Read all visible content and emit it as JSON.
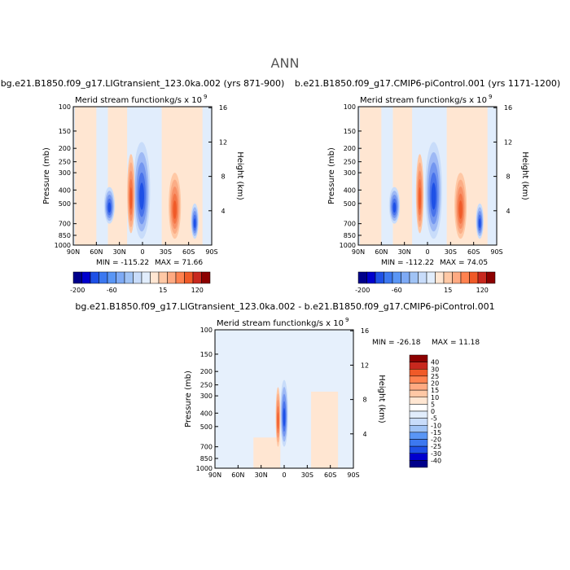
{
  "title": "ANN",
  "colors": {
    "page_bg": "#ffffff",
    "frame": "#000000"
  },
  "chart_data": [
    {
      "type": "heatmap",
      "panel": "top-left",
      "case_label": "bg.e21.B1850.f09_g17.LIGtransient_123.0ka.002 (yrs 871-900)",
      "title": "Merid stream function",
      "units": "kg/s x 10",
      "units_exponent": "9",
      "ylabel": "Pressure (mb)",
      "ylabel_right": "Height (km)",
      "x_ticks": [
        "90N",
        "60N",
        "30N",
        "0",
        "30S",
        "60S",
        "90S"
      ],
      "x_range": [
        90,
        -90
      ],
      "y_ticks": [
        "100",
        "150",
        "200",
        "250",
        "300",
        "400",
        "500",
        "700",
        "850",
        "1000"
      ],
      "y_range": [
        100,
        1000
      ],
      "y_scale": "log",
      "right_ticks": [
        "16",
        "12",
        "8",
        "4"
      ],
      "min_label": "MIN = -115.22",
      "max_label": "MAX = 71.66",
      "min": -115.22,
      "max": 71.66,
      "legend_placement": "bottom",
      "colorbar_labels": [
        "-200",
        "-60",
        "15",
        "120"
      ],
      "colorbar_colors": [
        "#00008b",
        "#0000cd",
        "#1e50e6",
        "#3c78f0",
        "#5a96f5",
        "#7eaaf5",
        "#a0c3f5",
        "#c8dcfa",
        "#e1edfc",
        "#ffe6d2",
        "#ffc8a5",
        "#ffaa82",
        "#ff8250",
        "#f05a28",
        "#c8281e",
        "#8c0000"
      ],
      "features": [
        {
          "kind": "negative",
          "lat": 1,
          "p_top": 180,
          "p_bot": 900,
          "peak": -115.22,
          "width": 11
        },
        {
          "kind": "positive",
          "lat": 15,
          "p_top": 220,
          "p_bot": 820,
          "peak": 71.66,
          "width": 5
        },
        {
          "kind": "positive",
          "lat": -42,
          "p_top": 300,
          "p_bot": 900,
          "peak": 40,
          "width": 8
        },
        {
          "kind": "negative",
          "lat": 43,
          "p_top": 380,
          "p_bot": 700,
          "peak": -20,
          "width": 7
        },
        {
          "kind": "negative",
          "lat": -68,
          "p_top": 500,
          "p_bot": 900,
          "peak": -8,
          "width": 5
        }
      ]
    },
    {
      "type": "heatmap",
      "panel": "top-right",
      "case_label": "b.e21.B1850.f09_g17.CMIP6-piControl.001 (yrs 1171-1200)",
      "title": "Merid stream function",
      "units": "kg/s x 10",
      "units_exponent": "9",
      "ylabel": "Pressure (mb)",
      "ylabel_right": "Height (km)",
      "x_ticks": [
        "90N",
        "60N",
        "30N",
        "0",
        "30S",
        "60S",
        "90S"
      ],
      "x_range": [
        90,
        -90
      ],
      "y_ticks": [
        "100",
        "150",
        "200",
        "250",
        "300",
        "400",
        "500",
        "700",
        "850",
        "1000"
      ],
      "y_range": [
        100,
        1000
      ],
      "y_scale": "log",
      "right_ticks": [
        "16",
        "12",
        "8",
        "4"
      ],
      "min_label": "MIN = -112.22",
      "max_label": "MAX = 74.05",
      "min": -112.22,
      "max": 74.05,
      "legend_placement": "bottom",
      "colorbar_labels": [
        "-200",
        "-60",
        "15",
        "120"
      ],
      "colorbar_colors": [
        "#00008b",
        "#0000cd",
        "#1e50e6",
        "#3c78f0",
        "#5a96f5",
        "#7eaaf5",
        "#a0c3f5",
        "#c8dcfa",
        "#e1edfc",
        "#ffe6d2",
        "#ffc8a5",
        "#ffaa82",
        "#ff8250",
        "#f05a28",
        "#c8281e",
        "#8c0000"
      ],
      "features": [
        {
          "kind": "negative",
          "lat": -8,
          "p_top": 180,
          "p_bot": 900,
          "peak": -112.22,
          "width": 11
        },
        {
          "kind": "positive",
          "lat": 10,
          "p_top": 220,
          "p_bot": 820,
          "peak": 74.05,
          "width": 5
        },
        {
          "kind": "positive",
          "lat": -43,
          "p_top": 300,
          "p_bot": 900,
          "peak": 40,
          "width": 8
        },
        {
          "kind": "negative",
          "lat": 43,
          "p_top": 380,
          "p_bot": 700,
          "peak": -20,
          "width": 7
        },
        {
          "kind": "negative",
          "lat": -68,
          "p_top": 500,
          "p_bot": 900,
          "peak": -8,
          "width": 5
        }
      ]
    },
    {
      "type": "heatmap",
      "panel": "bottom",
      "case_label": "bg.e21.B1850.f09_g17.LIGtransient_123.0ka.002 - b.e21.B1850.f09_g17.CMIP6-piControl.001",
      "title": "Merid stream function",
      "units": "kg/s x 10",
      "units_exponent": "9",
      "ylabel": "Pressure (mb)",
      "ylabel_right": "Height (km)",
      "x_ticks": [
        "90N",
        "60N",
        "30N",
        "0",
        "30S",
        "60S",
        "90S"
      ],
      "x_range": [
        90,
        -90
      ],
      "y_ticks": [
        "100",
        "150",
        "200",
        "250",
        "300",
        "400",
        "500",
        "700",
        "850",
        "1000"
      ],
      "y_range": [
        100,
        1000
      ],
      "y_scale": "log",
      "right_ticks": [
        "16",
        "12",
        "8",
        "4"
      ],
      "min_label": "MIN = -26.18",
      "max_label": "MAX =  11.18",
      "min": -26.18,
      "max": 11.18,
      "legend_placement": "right",
      "colorbar_labels": [
        "40",
        "30",
        "25",
        "20",
        "15",
        "10",
        "5",
        "0",
        "-5",
        "-10",
        "-15",
        "-20",
        "-25",
        "-30",
        "-40"
      ],
      "colorbar_colors": [
        "#8c0000",
        "#c8281e",
        "#f05a28",
        "#ff8250",
        "#ffaa82",
        "#ffc8a5",
        "#ffe6d2",
        "#ffffff",
        "#e1edfc",
        "#c8dcfa",
        "#a0c3f5",
        "#5a96f5",
        "#3c78f0",
        "#1e50e6",
        "#0000cd",
        "#00008b"
      ],
      "features": [
        {
          "kind": "negative",
          "lat": 0,
          "p_top": 230,
          "p_bot": 700,
          "peak": -26.18,
          "width": 5
        },
        {
          "kind": "positive",
          "lat": 8,
          "p_top": 260,
          "p_bot": 700,
          "peak": 11.18,
          "width": 3
        }
      ]
    }
  ]
}
